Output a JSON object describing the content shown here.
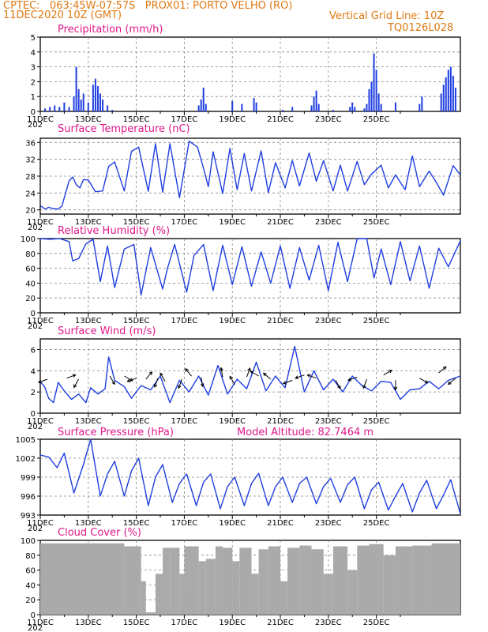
{
  "header": {
    "line1_left": "CPTEC:   063:45W-07:57S   PROX01: PORTO VELHO (RO)",
    "line2_left": "11DEC2020 10Z (GMT)",
    "line2_right": "Vertical Grid Line: 10Z",
    "line3_right": "TQ0126L028"
  },
  "colors": {
    "header": "#e07a14",
    "title": "#e0188a",
    "series": "#1f3ee0",
    "cloud": "#aaaaaa",
    "grid": "#888888"
  },
  "x_tick_labels": [
    "11DEC",
    "13DEC",
    "15DEC",
    "17DEC",
    "19DEC",
    "21DEC",
    "23DEC",
    "25DEC"
  ],
  "x_cut_label": "202",
  "model_altitude": "Model Altitude: 82.7464  m",
  "chart_data": [
    {
      "id": "precip",
      "type": "bar",
      "title": "Precipitation (mm/h)",
      "ylim": [
        0,
        5
      ],
      "yticks": [
        0,
        1,
        2,
        3,
        4,
        5
      ],
      "points": [
        [
          0.2,
          0.2
        ],
        [
          0.4,
          0.3
        ],
        [
          0.6,
          0.4
        ],
        [
          0.8,
          0.3
        ],
        [
          1.0,
          0.6
        ],
        [
          1.2,
          0.3
        ],
        [
          1.4,
          1.0
        ],
        [
          1.5,
          3.0
        ],
        [
          1.6,
          1.5
        ],
        [
          1.7,
          0.8
        ],
        [
          1.8,
          1.2
        ],
        [
          2.0,
          0.6
        ],
        [
          2.2,
          1.8
        ],
        [
          2.3,
          2.2
        ],
        [
          2.4,
          1.7
        ],
        [
          2.5,
          1.2
        ],
        [
          2.6,
          0.8
        ],
        [
          2.8,
          0.4
        ],
        [
          3.0,
          0.1
        ],
        [
          6.6,
          0.4
        ],
        [
          6.7,
          0.8
        ],
        [
          6.8,
          1.6
        ],
        [
          6.9,
          0.5
        ],
        [
          8.0,
          0.7
        ],
        [
          8.4,
          0.5
        ],
        [
          8.9,
          0.9
        ],
        [
          9.0,
          0.6
        ],
        [
          10.1,
          0.1
        ],
        [
          10.5,
          0.3
        ],
        [
          11.3,
          0.4
        ],
        [
          11.4,
          1.0
        ],
        [
          11.5,
          1.4
        ],
        [
          11.6,
          0.5
        ],
        [
          12.2,
          0.1
        ],
        [
          12.9,
          0.3
        ],
        [
          13.0,
          0.6
        ],
        [
          13.1,
          0.3
        ],
        [
          13.5,
          0.2
        ],
        [
          13.6,
          0.5
        ],
        [
          13.7,
          1.5
        ],
        [
          13.8,
          2.0
        ],
        [
          13.9,
          3.9
        ],
        [
          14.0,
          2.8
        ],
        [
          14.1,
          1.2
        ],
        [
          14.2,
          0.5
        ],
        [
          14.8,
          0.6
        ],
        [
          15.8,
          0.5
        ],
        [
          15.9,
          1.0
        ],
        [
          16.7,
          1.2
        ],
        [
          16.8,
          1.8
        ],
        [
          16.9,
          2.3
        ],
        [
          17.0,
          2.8
        ],
        [
          17.1,
          3.0
        ],
        [
          17.2,
          2.4
        ],
        [
          17.3,
          1.6
        ]
      ]
    },
    {
      "id": "temp",
      "type": "line",
      "title": "Surface Temperature (nC)",
      "ylim": [
        19,
        37
      ],
      "yticks": [
        20,
        24,
        28,
        32,
        36
      ],
      "x": [
        0.0,
        0.2,
        0.35,
        0.55,
        0.75,
        0.9,
        1.2,
        1.35,
        1.5,
        1.65,
        1.8,
        2.0,
        2.3,
        2.6,
        2.85,
        3.1,
        3.5,
        3.8,
        4.1,
        4.5,
        4.8,
        5.1,
        5.4,
        5.8,
        6.2,
        6.55,
        6.8,
        7.0,
        7.2,
        7.6,
        7.9,
        8.2,
        8.5,
        8.8,
        9.2,
        9.5,
        9.8,
        10.2,
        10.5,
        10.8,
        11.2,
        11.5,
        11.8,
        12.2,
        12.5,
        12.8,
        13.2,
        13.5,
        13.8,
        14.2,
        14.5,
        14.8,
        15.2,
        15.5,
        15.8,
        16.2,
        16.5,
        16.8,
        17.2,
        17.5
      ],
      "y": [
        21,
        20.2,
        20.6,
        20.3,
        20.2,
        20.9,
        26.9,
        27.8,
        26.0,
        25.2,
        27.2,
        27.1,
        24.3,
        24.5,
        30.3,
        31.4,
        24.5,
        33.9,
        34.9,
        24.4,
        35.7,
        24.2,
        35.7,
        22.9,
        36.3,
        34.9,
        29.9,
        25.5,
        33.8,
        23.9,
        34.6,
        24.8,
        33.4,
        24.5,
        34.0,
        24.1,
        31.2,
        25.2,
        31.7,
        25.7,
        33.5,
        26.8,
        31.7,
        24.5,
        30.6,
        24.5,
        31.5,
        26.0,
        28.5,
        30.6,
        25.2,
        28.3,
        24.8,
        32.8,
        25.5,
        29.2,
        26.5,
        23.5,
        30.5,
        28.3
      ]
    },
    {
      "id": "rh",
      "type": "line",
      "title": "Relative Humidity (%)",
      "ylim": [
        0,
        100
      ],
      "yticks": [
        0,
        20,
        40,
        60,
        80,
        100
      ],
      "x": [
        0.0,
        0.4,
        0.8,
        1.2,
        1.35,
        1.6,
        1.9,
        2.2,
        2.5,
        2.8,
        3.1,
        3.5,
        3.9,
        4.2,
        4.6,
        5.1,
        5.3,
        5.6,
        6.1,
        6.4,
        6.8,
        7.2,
        7.6,
        8.0,
        8.4,
        8.8,
        9.2,
        9.6,
        10.0,
        10.4,
        10.8,
        11.2,
        11.6,
        12.0,
        12.4,
        12.8,
        13.2,
        13.6,
        13.9,
        14.2,
        14.6,
        15.0,
        15.4,
        15.8,
        16.2,
        16.6,
        17.0,
        17.5
      ],
      "y": [
        100,
        99,
        100,
        96,
        70,
        73,
        93,
        99,
        42,
        90,
        34,
        86,
        92,
        24,
        88,
        32,
        60,
        92,
        28,
        77,
        92,
        30,
        91,
        38,
        89,
        36,
        82,
        40,
        90,
        33,
        88,
        44,
        91,
        30,
        95,
        42,
        100,
        100,
        47,
        86,
        38,
        96,
        43,
        90,
        33,
        87,
        62,
        97
      ]
    },
    {
      "id": "wind",
      "type": "line",
      "title": "Surface Wind (m/s)",
      "ylim": [
        0,
        7
      ],
      "yticks": [
        0,
        2,
        4,
        6
      ],
      "x": [
        0.0,
        0.2,
        0.35,
        0.55,
        0.75,
        1.0,
        1.3,
        1.6,
        1.9,
        2.1,
        2.4,
        2.7,
        2.85,
        3.1,
        3.5,
        3.8,
        4.2,
        4.6,
        5.0,
        5.4,
        5.8,
        6.2,
        6.6,
        7.0,
        7.4,
        7.8,
        8.2,
        8.6,
        9.0,
        9.4,
        9.8,
        10.2,
        10.6,
        11.0,
        11.4,
        11.8,
        12.2,
        12.6,
        13.0,
        13.4,
        13.8,
        14.2,
        14.6,
        15.0,
        15.4,
        15.8,
        16.2,
        16.6,
        17.0,
        17.5
      ],
      "y": [
        3.0,
        2.4,
        1.4,
        1.0,
        2.9,
        2.1,
        1.3,
        1.8,
        1.0,
        2.4,
        1.8,
        2.3,
        5.3,
        3.1,
        2.5,
        1.4,
        2.6,
        2.2,
        3.5,
        1.0,
        3.1,
        2.0,
        3.5,
        1.7,
        4.5,
        1.8,
        3.2,
        2.3,
        4.8,
        2.1,
        3.5,
        2.4,
        6.3,
        2.0,
        4.0,
        2.2,
        3.2,
        2.0,
        3.5,
        2.6,
        2.1,
        3.0,
        2.9,
        1.3,
        2.2,
        2.3,
        3.0,
        2.3,
        3.1,
        3.5
      ],
      "vectors": [
        [
          0.3,
          3.2,
          200
        ],
        [
          1.1,
          3.3,
          20
        ],
        [
          1.6,
          3.2,
          240
        ],
        [
          2.9,
          3.5,
          300
        ],
        [
          3.5,
          3.5,
          330
        ],
        [
          4.0,
          3.3,
          200
        ],
        [
          4.4,
          3.2,
          50
        ],
        [
          4.9,
          3.3,
          250
        ],
        [
          5.2,
          3.0,
          120
        ],
        [
          5.9,
          3.2,
          250
        ],
        [
          6.3,
          3.5,
          130
        ],
        [
          6.7,
          3.4,
          280
        ],
        [
          7.6,
          3.4,
          100
        ],
        [
          8.1,
          2.7,
          120
        ],
        [
          8.6,
          3.4,
          70
        ],
        [
          9.1,
          3.5,
          150
        ],
        [
          9.6,
          3.2,
          140
        ],
        [
          10.5,
          3.1,
          200
        ],
        [
          11.0,
          3.6,
          200
        ],
        [
          11.5,
          3.3,
          160
        ],
        [
          12.3,
          3.1,
          300
        ],
        [
          13.2,
          3.4,
          200
        ],
        [
          13.6,
          3.2,
          250
        ],
        [
          14.3,
          3.6,
          30
        ],
        [
          14.8,
          3.1,
          270
        ],
        [
          15.8,
          3.3,
          330
        ],
        [
          16.6,
          3.8,
          40
        ],
        [
          17.3,
          3.3,
          220
        ]
      ]
    },
    {
      "id": "pres",
      "type": "line",
      "title": "Surface Pressure (hPa)",
      "ylim": [
        993,
        1005
      ],
      "yticks": [
        993,
        996,
        999,
        1002,
        1005
      ],
      "x": [
        0.0,
        0.35,
        0.7,
        1.0,
        1.4,
        1.8,
        2.1,
        2.5,
        2.8,
        3.1,
        3.5,
        3.8,
        4.1,
        4.5,
        4.8,
        5.1,
        5.5,
        5.8,
        6.1,
        6.5,
        6.8,
        7.1,
        7.5,
        7.8,
        8.1,
        8.5,
        8.8,
        9.1,
        9.5,
        9.8,
        10.1,
        10.5,
        10.8,
        11.1,
        11.5,
        11.8,
        12.1,
        12.5,
        12.8,
        13.1,
        13.5,
        13.8,
        14.1,
        14.5,
        14.8,
        15.1,
        15.5,
        15.8,
        16.1,
        16.5,
        16.8,
        17.1,
        17.5
      ],
      "y": [
        1002.5,
        1002.2,
        1000.5,
        1002.8,
        996.5,
        1001,
        1005,
        996,
        999.5,
        1001.5,
        996,
        1000,
        1002,
        994.5,
        999,
        1001,
        995,
        998,
        999.5,
        994.5,
        998.2,
        999.5,
        994.0,
        997.5,
        999.0,
        994.5,
        998.0,
        999.6,
        994.5,
        997.5,
        999.0,
        995.0,
        998.0,
        999.0,
        994.8,
        997.5,
        998.8,
        995.0,
        997.8,
        999.0,
        994.0,
        997.0,
        998.2,
        993.8,
        996.0,
        998.0,
        993.5,
        996.5,
        998.5,
        994.0,
        996.2,
        998.6,
        993.2
      ]
    },
    {
      "id": "cloud",
      "type": "bar",
      "title": "Cloud Cover (%)",
      "ylim": [
        0,
        100
      ],
      "yticks": [
        0,
        20,
        40,
        60,
        80,
        100
      ],
      "segments": [
        [
          0.0,
          3.5,
          96
        ],
        [
          3.5,
          4.2,
          92
        ],
        [
          4.2,
          4.4,
          45
        ],
        [
          4.4,
          4.8,
          3
        ],
        [
          4.8,
          5.1,
          55
        ],
        [
          5.1,
          5.4,
          90
        ],
        [
          5.4,
          5.8,
          90
        ],
        [
          5.8,
          6.0,
          55
        ],
        [
          6.0,
          6.6,
          92
        ],
        [
          6.6,
          6.9,
          72
        ],
        [
          6.9,
          7.3,
          75
        ],
        [
          7.3,
          7.6,
          92
        ],
        [
          7.6,
          8.0,
          90
        ],
        [
          8.0,
          8.3,
          72
        ],
        [
          8.3,
          8.8,
          90
        ],
        [
          8.8,
          9.1,
          55
        ],
        [
          9.1,
          9.5,
          88
        ],
        [
          9.5,
          10.0,
          92
        ],
        [
          10.0,
          10.3,
          45
        ],
        [
          10.3,
          10.8,
          90
        ],
        [
          10.8,
          11.3,
          93
        ],
        [
          11.3,
          11.8,
          88
        ],
        [
          11.8,
          12.2,
          55
        ],
        [
          12.2,
          12.8,
          92
        ],
        [
          12.8,
          13.2,
          60
        ],
        [
          13.2,
          13.7,
          93
        ],
        [
          13.7,
          14.3,
          95
        ],
        [
          14.3,
          14.8,
          80
        ],
        [
          14.8,
          15.5,
          92
        ],
        [
          15.5,
          16.3,
          93
        ],
        [
          16.3,
          17.5,
          96
        ]
      ]
    }
  ]
}
